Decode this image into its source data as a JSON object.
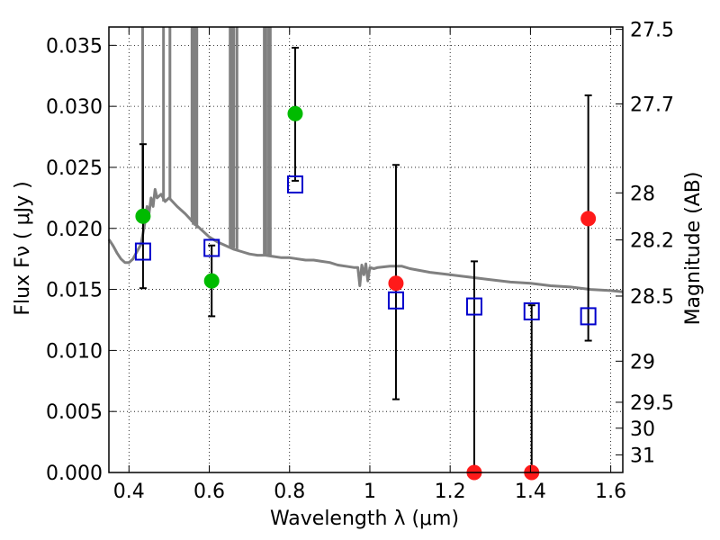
{
  "chart_data": {
    "type": "scatter",
    "xlabel": "Wavelength  λ (μm)",
    "ylabel_left": "Flux  Fν  ( μJy )",
    "ylabel_right": "Magnitude (AB)",
    "xlim": [
      0.35,
      1.63
    ],
    "ylim": [
      0.0,
      0.0365
    ],
    "grid": true,
    "x_ticks": [
      {
        "value": 0.4,
        "label": "0.4"
      },
      {
        "value": 0.6,
        "label": "0.6"
      },
      {
        "value": 0.8,
        "label": "0.8"
      },
      {
        "value": 1.0,
        "label": "1"
      },
      {
        "value": 1.2,
        "label": "1.2"
      },
      {
        "value": 1.4,
        "label": "1.4"
      },
      {
        "value": 1.6,
        "label": "1.6"
      }
    ],
    "y_ticks": [
      {
        "value": 0.0,
        "label": "0.000"
      },
      {
        "value": 0.005,
        "label": "0.005"
      },
      {
        "value": 0.01,
        "label": "0.010"
      },
      {
        "value": 0.015,
        "label": "0.015"
      },
      {
        "value": 0.02,
        "label": "0.020"
      },
      {
        "value": 0.025,
        "label": "0.025"
      },
      {
        "value": 0.03,
        "label": "0.030"
      },
      {
        "value": 0.035,
        "label": "0.035"
      }
    ],
    "right_ticks": [
      {
        "value": 27.5,
        "label": "27.5"
      },
      {
        "value": 27.7,
        "label": "27.7"
      },
      {
        "value": 28,
        "label": "28"
      },
      {
        "value": 28.2,
        "label": "28.2"
      },
      {
        "value": 28.5,
        "label": "28.5"
      },
      {
        "value": 29,
        "label": "29"
      },
      {
        "value": 29.5,
        "label": "29.5"
      },
      {
        "value": 30,
        "label": "30"
      },
      {
        "value": 31,
        "label": "31"
      }
    ],
    "model_sed": {
      "color": "#808080",
      "points": [
        [
          0.35,
          0.0191
        ],
        [
          0.36,
          0.0186
        ],
        [
          0.37,
          0.018
        ],
        [
          0.38,
          0.0175
        ],
        [
          0.39,
          0.0172
        ],
        [
          0.4,
          0.0172
        ],
        [
          0.41,
          0.0175
        ],
        [
          0.42,
          0.0181
        ],
        [
          0.43,
          0.0187
        ],
        [
          0.44,
          0.0205
        ],
        [
          0.445,
          0.0218
        ],
        [
          0.45,
          0.0212
        ],
        [
          0.455,
          0.0225
        ],
        [
          0.46,
          0.0218
        ],
        [
          0.465,
          0.0232
        ],
        [
          0.47,
          0.0225
        ],
        [
          0.48,
          0.0228
        ],
        [
          0.49,
          0.0222
        ],
        [
          0.5,
          0.0225
        ],
        [
          0.52,
          0.0218
        ],
        [
          0.54,
          0.0212
        ],
        [
          0.56,
          0.0205
        ],
        [
          0.58,
          0.0199
        ],
        [
          0.6,
          0.0193
        ],
        [
          0.62,
          0.0189
        ],
        [
          0.64,
          0.0186
        ],
        [
          0.66,
          0.0183
        ],
        [
          0.68,
          0.0181
        ],
        [
          0.7,
          0.0179
        ],
        [
          0.72,
          0.0178
        ],
        [
          0.74,
          0.0178
        ],
        [
          0.76,
          0.0177
        ],
        [
          0.78,
          0.0176
        ],
        [
          0.8,
          0.0176
        ],
        [
          0.82,
          0.0175
        ],
        [
          0.84,
          0.0174
        ],
        [
          0.86,
          0.0174
        ],
        [
          0.88,
          0.0173
        ],
        [
          0.9,
          0.0172
        ],
        [
          0.92,
          0.017
        ],
        [
          0.94,
          0.0169
        ],
        [
          0.96,
          0.0168
        ],
        [
          0.97,
          0.0168
        ],
        [
          0.975,
          0.0153
        ],
        [
          0.98,
          0.017
        ],
        [
          0.985,
          0.0162
        ],
        [
          0.99,
          0.0171
        ],
        [
          0.995,
          0.0157
        ],
        [
          1.0,
          0.0168
        ],
        [
          1.01,
          0.0167
        ],
        [
          1.02,
          0.0168
        ],
        [
          1.05,
          0.0169
        ],
        [
          1.08,
          0.0169
        ],
        [
          1.1,
          0.0167
        ],
        [
          1.15,
          0.0164
        ],
        [
          1.2,
          0.0162
        ],
        [
          1.25,
          0.016
        ],
        [
          1.3,
          0.0158
        ],
        [
          1.35,
          0.0156
        ],
        [
          1.4,
          0.0155
        ],
        [
          1.45,
          0.0153
        ],
        [
          1.5,
          0.0152
        ],
        [
          1.55,
          0.015
        ],
        [
          1.6,
          0.0149
        ],
        [
          1.63,
          0.0148
        ]
      ],
      "emission_lines": [
        {
          "x": 0.434,
          "top": 0.0365,
          "base": 0.0205
        },
        {
          "x": 0.486,
          "top": 0.0365,
          "base": 0.0222
        },
        {
          "x": 0.502,
          "top": 0.0365,
          "base": 0.0224
        },
        {
          "x": 0.557,
          "top": 0.0365,
          "base": 0.0205
        },
        {
          "x": 0.56,
          "top": 0.0365,
          "base": 0.0203
        },
        {
          "x": 0.565,
          "top": 0.0365,
          "base": 0.0202
        },
        {
          "x": 0.569,
          "top": 0.0365,
          "base": 0.02
        },
        {
          "x": 0.652,
          "top": 0.0365,
          "base": 0.0185
        },
        {
          "x": 0.656,
          "top": 0.0365,
          "base": 0.0184
        },
        {
          "x": 0.661,
          "top": 0.0365,
          "base": 0.0184
        },
        {
          "x": 0.669,
          "top": 0.0365,
          "base": 0.0183
        },
        {
          "x": 0.737,
          "top": 0.0365,
          "base": 0.0178
        },
        {
          "x": 0.741,
          "top": 0.0365,
          "base": 0.0178
        },
        {
          "x": 0.748,
          "top": 0.0365,
          "base": 0.0178
        },
        {
          "x": 0.752,
          "top": 0.0365,
          "base": 0.0178
        }
      ]
    },
    "model_photometry": {
      "marker": "open-square",
      "color": "#0000cc",
      "points": [
        {
          "x": 0.435,
          "y": 0.0181
        },
        {
          "x": 0.606,
          "y": 0.0184
        },
        {
          "x": 0.814,
          "y": 0.0236
        },
        {
          "x": 1.065,
          "y": 0.0141
        },
        {
          "x": 1.26,
          "y": 0.0136
        },
        {
          "x": 1.403,
          "y": 0.0132
        },
        {
          "x": 1.544,
          "y": 0.0128
        }
      ]
    },
    "observed_green": {
      "marker": "filled-circle",
      "color": "#00bb00",
      "points": [
        {
          "x": 0.435,
          "y": 0.021,
          "err_low": 0.0151,
          "err_high": 0.0269
        },
        {
          "x": 0.606,
          "y": 0.0157,
          "err_low": 0.0128,
          "err_high": 0.0186
        },
        {
          "x": 0.814,
          "y": 0.0294,
          "err_low": 0.0239,
          "err_high": 0.0348
        }
      ]
    },
    "observed_red": {
      "marker": "filled-circle",
      "color": "#ff1a1a",
      "points": [
        {
          "x": 1.065,
          "y": 0.0155,
          "err_low": 0.006,
          "err_high": 0.0252
        },
        {
          "x": 1.26,
          "y": 0.0,
          "err_low": 0.0,
          "err_high": 0.0173
        },
        {
          "x": 1.403,
          "y": 0.0,
          "err_low": 0.0,
          "err_high": 0.0137
        },
        {
          "x": 1.544,
          "y": 0.0208,
          "err_low": 0.0108,
          "err_high": 0.0309
        }
      ]
    }
  }
}
